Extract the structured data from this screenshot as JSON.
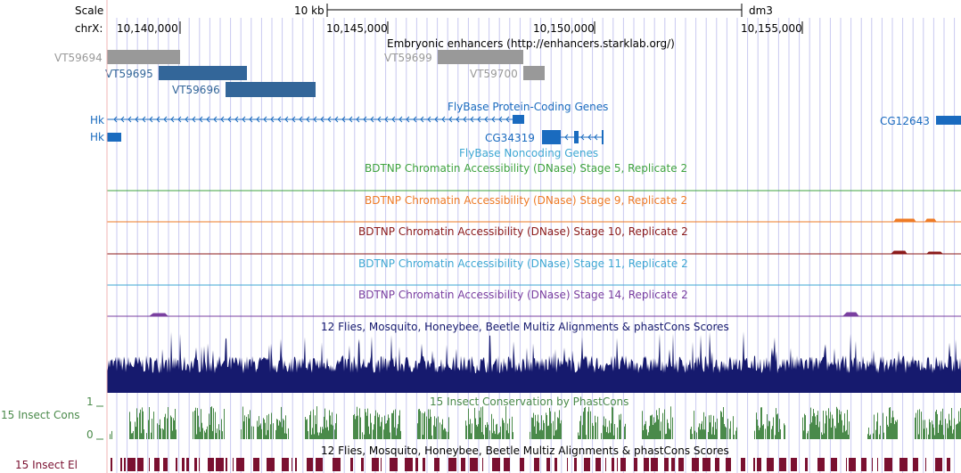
{
  "ruler": {
    "scale_label": "Scale",
    "chrom_label": "chrX:",
    "scale_bar_label": "10 kb",
    "assembly": "dm3",
    "positions": [
      "10,140,000",
      "10,145,000",
      "10,150,000",
      "10,155,000"
    ]
  },
  "enhancers": {
    "track_title": "Embryonic enhancers (http://enhancers.starklab.org/)",
    "items": [
      "VT59694",
      "VT59695",
      "VT59696",
      "VT59699",
      "VT59700"
    ]
  },
  "genes": {
    "coding_title": "FlyBase Protein-Coding Genes",
    "noncoding_title": "FlyBase Noncoding Genes",
    "items": [
      "Hk",
      "Hk",
      "CG34319",
      "CG12643"
    ]
  },
  "dnase": {
    "tracks": [
      {
        "title": "BDTNP Chromatin Accessibility (DNase) Stage 5, Replicate 2",
        "color": "#3fa33f"
      },
      {
        "title": "BDTNP Chromatin Accessibility (DNase) Stage 9, Replicate 2",
        "color": "#ee7b26"
      },
      {
        "title": "BDTNP Chromatin Accessibility (DNase) Stage 10, Replicate 2",
        "color": "#8b1a1a"
      },
      {
        "title": "BDTNP Chromatin Accessibility (DNase) Stage 11, Replicate 2",
        "color": "#3ea7d3"
      },
      {
        "title": "BDTNP Chromatin Accessibility (DNase) Stage 14, Replicate 2",
        "color": "#7a3fa0"
      }
    ]
  },
  "conservation": {
    "multiz_title": "12 Flies, Mosquito, Honeybee, Beetle Multiz Alignments & phastCons Scores",
    "phastcons_title": "15 Insect Conservation by PhastCons",
    "left_label": "15 Insect Cons",
    "axis_max": "1",
    "axis_min": "0",
    "multiz_title_2": "12 Flies, Mosquito, Honeybee, Beetle Multiz Alignments & phastCons Scores",
    "elements_label": "15 Insect El"
  },
  "colors": {
    "enhancer_gray": "#999999",
    "enhancer_blue": "#336699",
    "gene_blue": "#1a6bbf",
    "multiz_navy": "#161a6e",
    "phast_green": "#4a8a4a",
    "elements_maroon": "#7a1030",
    "grid_blue": "#c8c8f0",
    "grid_pink": "#f0b4b4"
  }
}
